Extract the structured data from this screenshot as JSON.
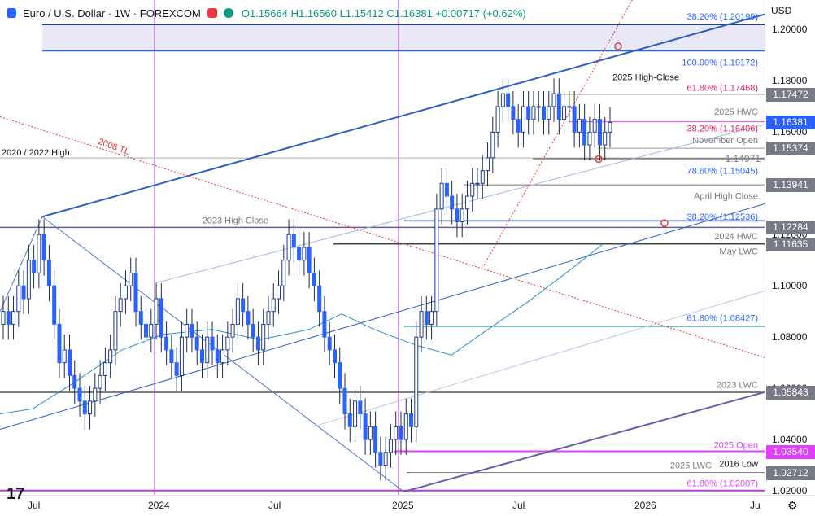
{
  "header": {
    "title": "Euro / U.S. Dollar · 1W · FOREXCOM",
    "ohlc": "O1.15664 H1.16560 L1.15412 C1.16381 +0.00717 (+0.62%)",
    "currency": "USD"
  },
  "axis": {
    "ticks": [
      "1.20000",
      "1.18000",
      "1.16000",
      "1.14000",
      "1.12000",
      "1.10000",
      "1.08000",
      "1.06000",
      "1.04000",
      "1.02000"
    ],
    "time_labels": [
      "Jul",
      "2024",
      "Jul",
      "2025",
      "Jul",
      "2026",
      "Ju"
    ]
  },
  "price_labels": [
    {
      "text": "1.17472",
      "color": "#787b86"
    },
    {
      "text": "1.16381",
      "color": "#2962ff"
    },
    {
      "text": "1.15374",
      "color": "#787b86"
    },
    {
      "text": "1.13941",
      "color": "#787b86"
    },
    {
      "text": "1.12284",
      "color": "#787b86"
    },
    {
      "text": "1.11635",
      "color": "#787b86"
    },
    {
      "text": "1.05843",
      "color": "#787b86"
    },
    {
      "text": "1.03540",
      "color": "#e040fb"
    },
    {
      "text": "1.02712",
      "color": "#787b86"
    }
  ],
  "annotations": [
    {
      "text": "38.20% (1.20199)",
      "color": "#2962ff"
    },
    {
      "text": "100.00% (1.19172)",
      "color": "#2962ff"
    },
    {
      "text": "2025 High-Close",
      "color": "#131722"
    },
    {
      "text": "61.80% (1.17468)",
      "color": "#e91e63"
    },
    {
      "text": "2025 HWC",
      "color": "#787b86"
    },
    {
      "text": "38.20% (1.16406)",
      "color": "#e91e63"
    },
    {
      "text": "November Open",
      "color": "#787b86"
    },
    {
      "text": "1.14971",
      "color": "#787b86"
    },
    {
      "text": "78.60% (1.15045)",
      "color": "#2962ff"
    },
    {
      "text": "April High Close",
      "color": "#787b86"
    },
    {
      "text": "38.20% (1.12536)",
      "color": "#2962ff"
    },
    {
      "text": "2024 HWC",
      "color": "#787b86"
    },
    {
      "text": "May LWC",
      "color": "#787b86"
    },
    {
      "text": "61.80% (1.08427)",
      "color": "#2962ff"
    },
    {
      "text": "2023 LWC",
      "color": "#787b86"
    },
    {
      "text": "2025 Open",
      "color": "#e040fb"
    },
    {
      "text": "2016 Low",
      "color": "#131722"
    },
    {
      "text": "2025 LWC",
      "color": "#787b86"
    },
    {
      "text": "61.80% (1.02007)",
      "color": "#e040fb"
    },
    {
      "text": "2020 / 2022 High",
      "color": "#131722"
    },
    {
      "text": "2008 TL",
      "color": "#e53935"
    },
    {
      "text": "2023 High Close",
      "color": "#787b86"
    }
  ],
  "chart_data": {
    "type": "candlestick",
    "title": "Euro / U.S. Dollar · 1W · FOREXCOM",
    "ylim": [
      1.02,
      1.21
    ],
    "y_axis_side": "right",
    "grid": false,
    "x_labels": [
      "Jul",
      "2024",
      "Jul",
      "2025",
      "Jul",
      "2026",
      "Ju"
    ],
    "last_close": 1.16381,
    "levels": [
      {
        "name": "38.20%",
        "value": 1.20199
      },
      {
        "name": "100.00%",
        "value": 1.19172
      },
      {
        "name": "61.80%",
        "value": 1.17468
      },
      {
        "name": "2025 HWC",
        "value": 1.17472
      },
      {
        "name": "38.20%",
        "value": 1.16406
      },
      {
        "name": "November Open",
        "value": 1.15374
      },
      {
        "name": "78.60%",
        "value": 1.15045
      },
      {
        "name": "",
        "value": 1.14971
      },
      {
        "name": "April High Close",
        "value": 1.13941
      },
      {
        "name": "38.20%",
        "value": 1.12536
      },
      {
        "name": "2024 HWC",
        "value": 1.12284
      },
      {
        "name": "May LWC",
        "value": 1.11635
      },
      {
        "name": "61.80%",
        "value": 1.08427
      },
      {
        "name": "2023 LWC",
        "value": 1.05843
      },
      {
        "name": "2025 Open",
        "value": 1.0354
      },
      {
        "name": "2016 Low",
        "value": 1.02712
      },
      {
        "name": "61.80%",
        "value": 1.02007
      }
    ],
    "weekly_closes_approx": [
      1.09,
      1.085,
      1.09,
      1.1,
      1.095,
      1.11,
      1.105,
      1.12,
      1.11,
      1.1,
      1.085,
      1.07,
      1.075,
      1.065,
      1.06,
      1.055,
      1.05,
      1.055,
      1.06,
      1.065,
      1.07,
      1.075,
      1.09,
      1.095,
      1.1,
      1.105,
      1.09,
      1.085,
      1.08,
      1.085,
      1.095,
      1.08,
      1.075,
      1.07,
      1.065,
      1.08,
      1.085,
      1.08,
      1.075,
      1.07,
      1.08,
      1.075,
      1.07,
      1.075,
      1.08,
      1.085,
      1.095,
      1.09,
      1.085,
      1.08,
      1.075,
      1.085,
      1.09,
      1.095,
      1.1,
      1.11,
      1.12,
      1.115,
      1.11,
      1.115,
      1.105,
      1.1,
      1.09,
      1.08,
      1.075,
      1.07,
      1.06,
      1.05,
      1.045,
      1.055,
      1.05,
      1.04,
      1.045,
      1.035,
      1.03,
      1.035,
      1.04,
      1.045,
      1.04,
      1.05,
      1.045,
      1.08,
      1.09,
      1.085,
      1.09,
      1.13,
      1.14,
      1.135,
      1.13,
      1.125,
      1.13,
      1.135,
      1.14,
      1.14,
      1.145,
      1.15,
      1.16,
      1.17,
      1.175,
      1.17,
      1.165,
      1.16,
      1.17,
      1.165,
      1.17,
      1.17,
      1.165,
      1.17,
      1.175,
      1.165,
      1.17,
      1.17,
      1.16,
      1.165,
      1.155,
      1.16,
      1.165,
      1.155,
      1.16,
      1.16381
    ]
  }
}
